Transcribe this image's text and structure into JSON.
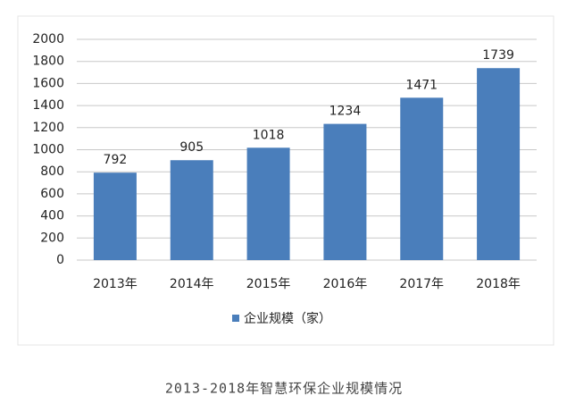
{
  "chart_data": {
    "type": "bar",
    "categories": [
      "2013年",
      "2014年",
      "2015年",
      "2016年",
      "2017年",
      "2018年"
    ],
    "series": [
      {
        "name": "企业规模（家）",
        "color": "#4a7ebb",
        "values": [
          792,
          905,
          1018,
          1234,
          1471,
          1739
        ]
      }
    ],
    "ylim": [
      0,
      2000
    ],
    "yticks": [
      0,
      200,
      400,
      600,
      800,
      1000,
      1200,
      1400,
      1600,
      1800,
      2000
    ],
    "grid": true,
    "legend": "bottom"
  },
  "caption": "2013-2018年智慧环保企业规模情况"
}
